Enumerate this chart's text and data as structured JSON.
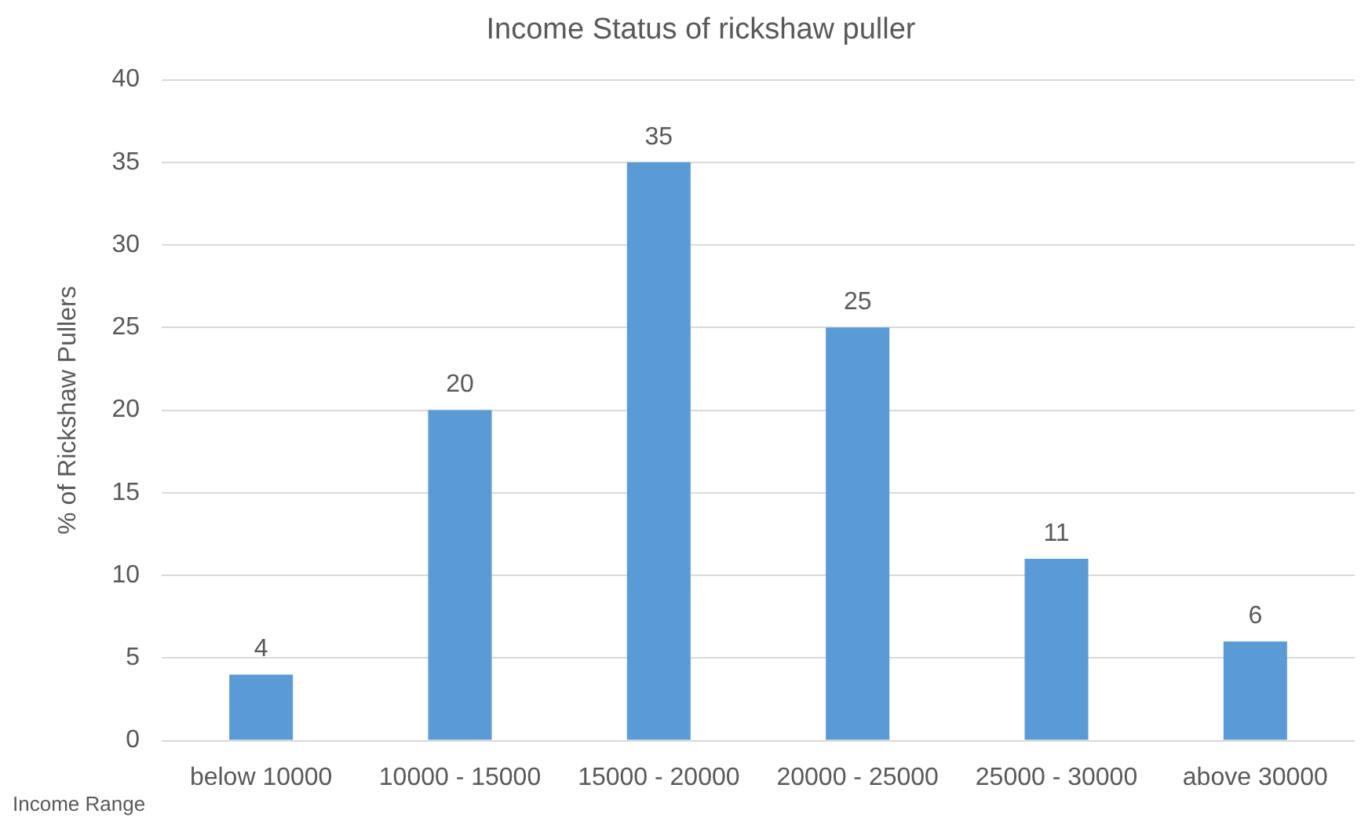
{
  "chart_data": {
    "type": "bar",
    "title": "Income Status of rickshaw puller",
    "xlabel": "Income Range",
    "ylabel": "% of Rickshaw Pullers",
    "categories": [
      "below 10000",
      "10000 - 15000",
      "15000 - 20000",
      "20000 - 25000",
      "25000 - 30000",
      "above 30000"
    ],
    "values": [
      4,
      20,
      35,
      25,
      11,
      6
    ],
    "color": "#5b9bd5",
    "ylim": [
      0,
      40
    ],
    "yticks": [
      0,
      5,
      10,
      15,
      20,
      25,
      30,
      35,
      40
    ],
    "grid": "y",
    "legend": false,
    "data_labels": true
  }
}
